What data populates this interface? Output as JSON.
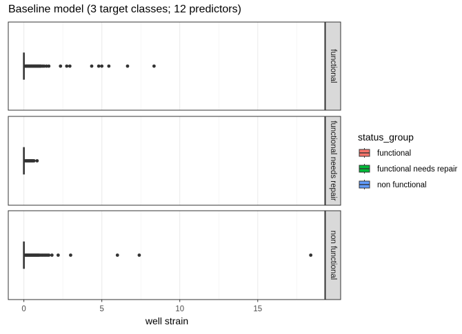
{
  "chart_data": {
    "type": "boxplot",
    "title": "Baseline model (3 target classes; 12 predictors)",
    "xlabel": "well strain",
    "xlim": [
      -1,
      19.3
    ],
    "x_ticks": [
      0,
      5,
      10,
      15
    ],
    "x_tick_labels": [
      "0",
      "5",
      "10",
      "15"
    ],
    "grid": true,
    "legend": {
      "title": "status_group",
      "position": "right",
      "entries": [
        {
          "label": "functional",
          "color": "#F8766D"
        },
        {
          "label": "functional needs repair",
          "color": "#00BA38"
        },
        {
          "label": "non functional",
          "color": "#619CFF"
        }
      ]
    },
    "facets": [
      {
        "label": "functional",
        "box": {
          "min": 0,
          "q1": 0,
          "median": 0,
          "q3": 0,
          "whisker_max": 0.05
        },
        "outliers": [
          0.1,
          0.15,
          0.2,
          0.25,
          0.3,
          0.35,
          0.4,
          0.45,
          0.5,
          0.55,
          0.6,
          0.65,
          0.7,
          0.75,
          0.8,
          0.85,
          0.9,
          0.95,
          1.0,
          1.05,
          1.1,
          1.2,
          1.3,
          1.45,
          1.6,
          2.35,
          2.75,
          2.95,
          4.35,
          4.8,
          5.0,
          5.45,
          6.65,
          8.35
        ]
      },
      {
        "label": "functional needs repair",
        "box": {
          "min": 0,
          "q1": 0,
          "median": 0,
          "q3": 0,
          "whisker_max": 0.05
        },
        "outliers": [
          0.1,
          0.15,
          0.2,
          0.25,
          0.3,
          0.35,
          0.4,
          0.45,
          0.5,
          0.55,
          0.6,
          0.65,
          0.85
        ]
      },
      {
        "label": "non functional",
        "box": {
          "min": 0,
          "q1": 0,
          "median": 0,
          "q3": 0,
          "whisker_max": 0.05
        },
        "outliers": [
          0.1,
          0.15,
          0.2,
          0.25,
          0.3,
          0.35,
          0.4,
          0.45,
          0.5,
          0.55,
          0.6,
          0.65,
          0.7,
          0.75,
          0.8,
          0.85,
          0.9,
          0.95,
          1.0,
          1.1,
          1.2,
          1.3,
          1.4,
          1.5,
          1.6,
          1.8,
          2.2,
          3.0,
          6.0,
          7.4,
          18.4
        ]
      }
    ]
  }
}
